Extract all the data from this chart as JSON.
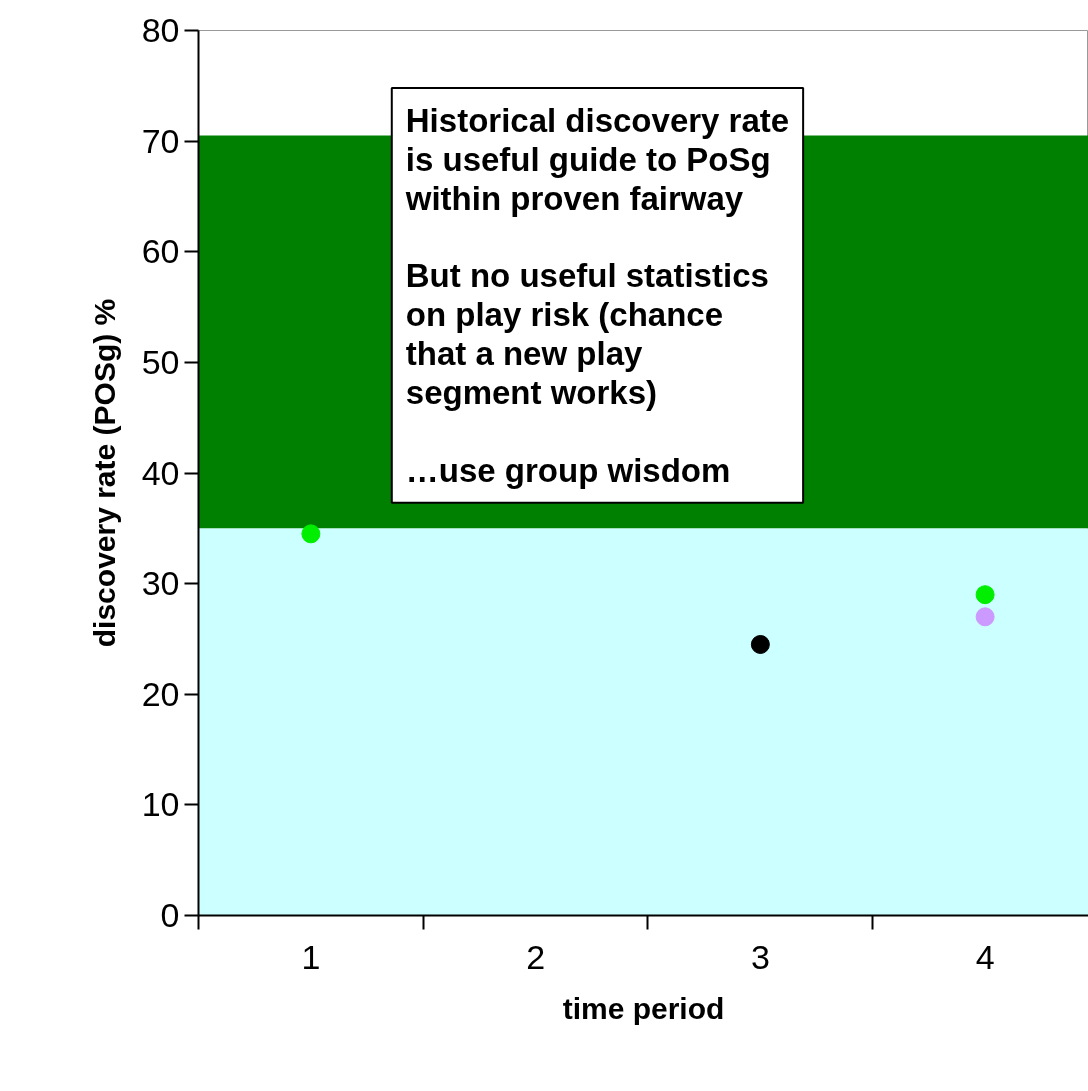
{
  "chart_data": {
    "type": "scatter",
    "xlabel": "time period",
    "ylabel": "discovery rate (POSg) %",
    "categories": [
      "1",
      "2",
      "3",
      "4"
    ],
    "ylim": [
      0,
      80
    ],
    "yticks": [
      0,
      10,
      20,
      30,
      40,
      50,
      60,
      70,
      80
    ],
    "series": [
      {
        "color": "#00ee00",
        "values": [
          34.5,
          null,
          null,
          29
        ]
      },
      {
        "color": "#000000",
        "values": [
          null,
          null,
          24.5,
          null
        ]
      },
      {
        "color": "#cc99ff",
        "values": [
          null,
          null,
          null,
          27
        ]
      }
    ],
    "marker": "circle",
    "grid": false,
    "bands": [
      {
        "axis": "y",
        "from": 0,
        "to": 35,
        "color": "#ccffff"
      },
      {
        "axis": "y",
        "from": 35,
        "to": 70.5,
        "color": "#008000"
      }
    ],
    "annotations": [
      "Historical discovery rate\nis useful guide to PoSg\nwithin proven fairway",
      "But no useful statistics\non play risk (chance\nthat a new play\nsegment works)",
      "…use group wisdom"
    ]
  }
}
